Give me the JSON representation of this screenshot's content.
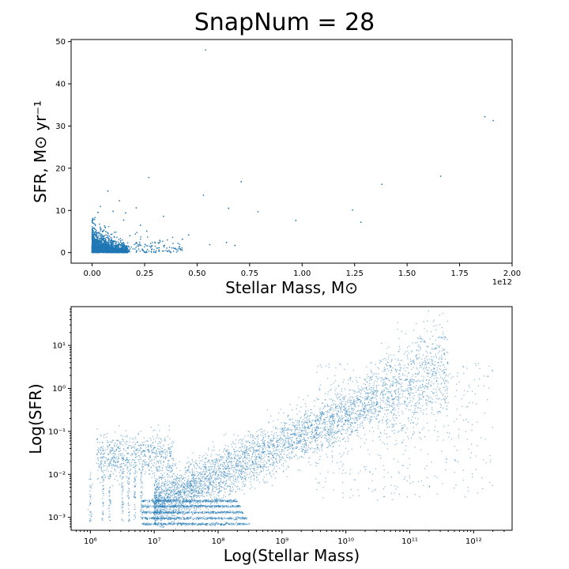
{
  "suptitle": "SnapNum = 28",
  "chart_data": [
    {
      "type": "scatter",
      "xlabel": "Stellar Mass, M⊙",
      "ylabel": "SFR, M⊙ yr⁻¹",
      "x_offset_label": "1e12",
      "xlim": [
        -100000000000.0,
        2000000000000.0
      ],
      "ylim": [
        -2.5,
        50.5
      ],
      "x_ticks": [
        0,
        250000000000.0,
        500000000000.0,
        750000000000.0,
        1000000000000.0,
        1250000000000.0,
        1500000000000.0,
        1750000000000.0,
        2000000000000.0
      ],
      "x_tick_labels": [
        "0.00",
        "0.25",
        "0.50",
        "0.75",
        "1.00",
        "1.25",
        "1.50",
        "1.75",
        "2.00"
      ],
      "y_ticks": [
        0,
        10,
        20,
        30,
        40,
        50
      ],
      "y_tick_labels": [
        "0",
        "10",
        "20",
        "30",
        "40",
        "50"
      ],
      "color": "#1f77b4",
      "grid": false,
      "series": [
        {
          "x": [
            540000000000.0,
            1870000000000.0,
            1910000000000.0,
            75000000000.0,
            270000000000.0,
            530000000000.0,
            650000000000.0,
            710000000000.0,
            970000000000.0,
            1240000000000.0,
            1380000000000.0,
            1660000000000.0,
            1280000000000.0,
            790000000000.0,
            640000000000.0,
            560000000000.0,
            430000000000.0,
            340000000000.0,
            210000000000.0,
            160000000000.0,
            130000000000.0,
            100000000000.0,
            260000000000.0,
            460000000000.0,
            300000000000.0,
            230000000000.0,
            180000000000.0,
            150000000000.0,
            380000000000.0,
            680000000000.0
          ],
          "y": [
            48,
            32.2,
            31.3,
            14.6,
            17.8,
            13.6,
            10.5,
            16.8,
            7.6,
            10.1,
            16.2,
            18.1,
            7.2,
            9.7,
            2.4,
            1.9,
            3.2,
            8.6,
            10.6,
            9.4,
            12.3,
            9.8,
            5.1,
            4.2,
            2.3,
            6.5,
            4.0,
            7.7,
            1.1,
            1.7
          ]
        }
      ],
      "dense_cluster": {
        "x_range": [
          0,
          180000000000.0
        ],
        "y_range": [
          0,
          6.5
        ]
      }
    },
    {
      "type": "scatter",
      "xlabel": "Log(Stellar Mass)",
      "ylabel": "Log(SFR)",
      "x_scale": "log",
      "y_scale": "log",
      "xlim": [
        500000.0,
        4000000000000.0
      ],
      "ylim": [
        0.0005,
        80
      ],
      "x_ticks": [
        1000000.0,
        10000000.0,
        100000000.0,
        1000000000.0,
        10000000000.0,
        100000000000.0,
        1000000000000.0
      ],
      "x_tick_labels": [
        "10⁶",
        "10⁷",
        "10⁸",
        "10⁹",
        "10¹⁰",
        "10¹¹",
        "10¹²"
      ],
      "y_ticks": [
        0.001,
        0.01,
        0.1,
        1,
        10
      ],
      "y_tick_labels": [
        "10⁻³",
        "10⁻²",
        "10⁻¹",
        "10⁰",
        "10¹"
      ],
      "color": "#1f77b4",
      "grid": false,
      "main_sequence": {
        "log_mass": [
          7,
          12
        ],
        "log_sfr": [
          -2.7,
          0.8
        ]
      },
      "sfr_floor_levels": [
        0.0007,
        0.00095,
        0.0013,
        0.0018,
        0.0024
      ],
      "low_mass_clump": {
        "log_mass": [
          6.1,
          7.3
        ],
        "log_sfr": [
          -2.0,
          -1.0
        ]
      }
    }
  ]
}
